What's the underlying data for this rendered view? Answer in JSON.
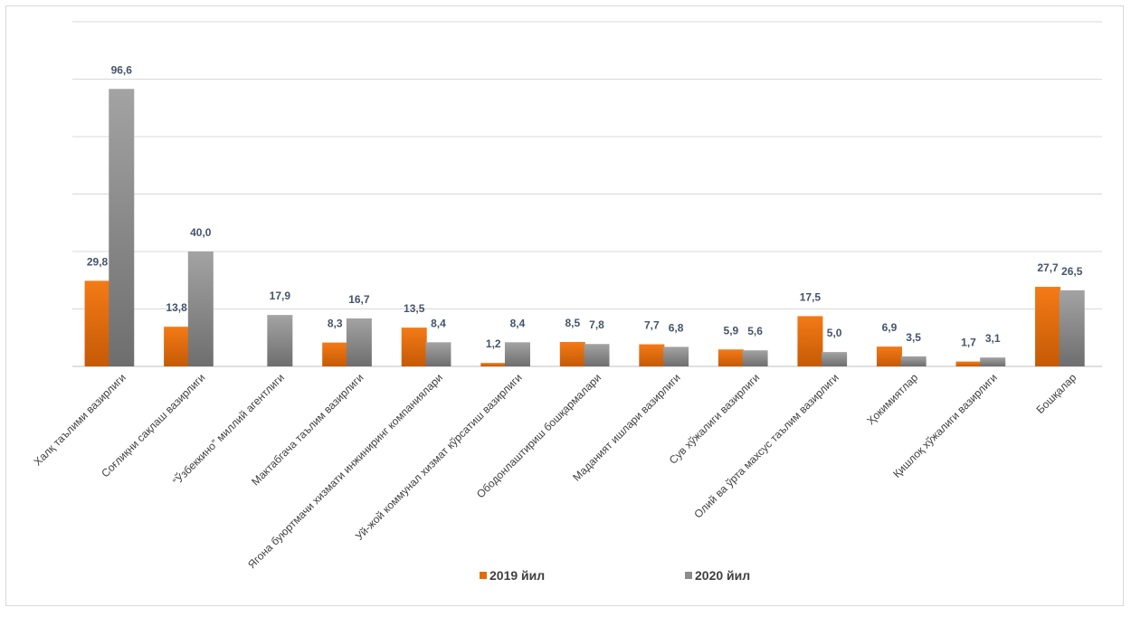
{
  "chart_data": {
    "type": "bar",
    "title": "",
    "xlabel": "",
    "ylabel": "",
    "ylim": [
      0,
      120
    ],
    "grid": true,
    "legend_position": "bottom",
    "categories": [
      "Халқ таълими вазирлиги",
      "Соғлиқни сақлаш вазирлиги",
      "“Ўзбеккино” миллий агентлиги",
      "Мактабгача таълим вазирлиги",
      "Ягона буюртмачи хизмати инжиниринг компаниялари",
      "Уй-жой коммунал хизмат кўрсатиш вазирлиги",
      "Ободонлаштириш бошқармалари",
      "Маданият ишлари вазирлиги",
      "Сув хўжалиги вазирлиги",
      "Олий ва ўрта махсус таълим вазирлиги",
      "Ҳокимиятлар",
      "Қишлоқ хўжалиги вазирлиги",
      "Бошқалар"
    ],
    "series": [
      {
        "name": "2019 йил",
        "color": "#e36c09",
        "values": [
          29.8,
          13.8,
          null,
          8.3,
          13.5,
          1.2,
          8.5,
          7.7,
          5.9,
          17.5,
          6.9,
          1.7,
          27.7
        ],
        "labels": [
          "29,8",
          "13,8",
          "",
          "8,3",
          "13,5",
          "1,2",
          "8,5",
          "7,7",
          "5,9",
          "17,5",
          "6,9",
          "1,7",
          "27,7"
        ]
      },
      {
        "name": "2020 йил",
        "color": "#8c8c8c",
        "values": [
          96.6,
          40.0,
          17.9,
          16.7,
          8.4,
          8.4,
          7.8,
          6.8,
          5.6,
          5.0,
          3.5,
          3.1,
          26.5
        ],
        "labels": [
          "96,6",
          "40,0",
          "17,9",
          "16,7",
          "8,4",
          "8,4",
          "7,8",
          "6,8",
          "5,6",
          "5,0",
          "3,5",
          "3,1",
          "26,5"
        ]
      }
    ]
  }
}
